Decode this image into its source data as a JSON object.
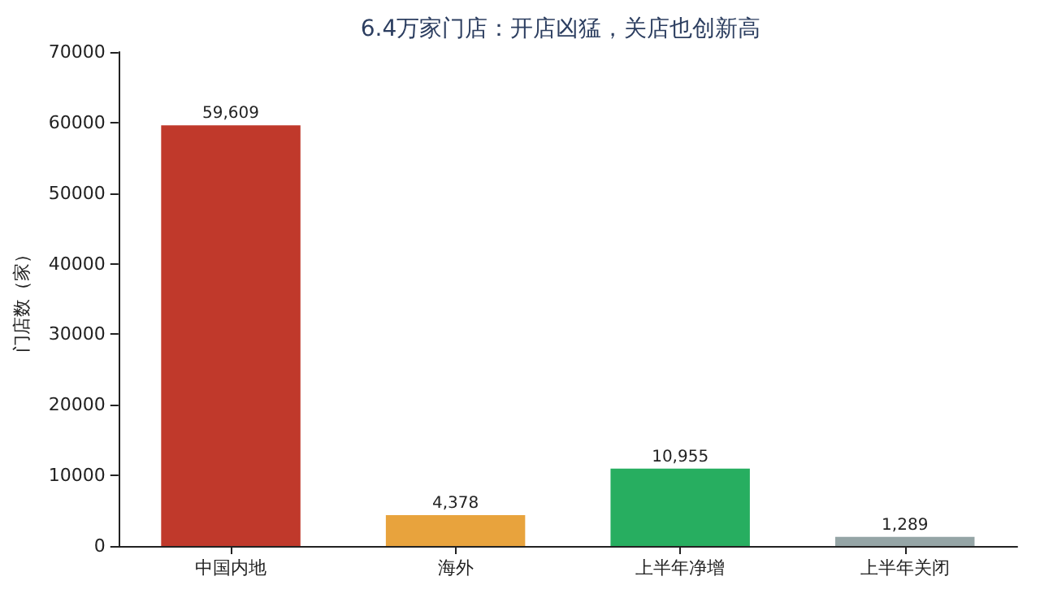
{
  "chart_data": {
    "type": "bar",
    "title": "6.4万家门店：开店凶猛，关店也创新高",
    "ylabel": "门店数（家）",
    "categories": [
      "中国内地",
      "海外",
      "上半年净增",
      "上半年关闭"
    ],
    "values": [
      59609,
      4378,
      10955,
      1289
    ],
    "colors": [
      "#c0392b",
      "#e8a33d",
      "#27ae60",
      "#95a5a6"
    ],
    "value_labels": [
      "59,609",
      "4,378",
      "10,955",
      "1,289"
    ],
    "ylim": [
      0,
      70000
    ],
    "yticks": [
      0,
      10000,
      20000,
      30000,
      40000,
      50000,
      60000,
      70000
    ],
    "grid": false
  }
}
